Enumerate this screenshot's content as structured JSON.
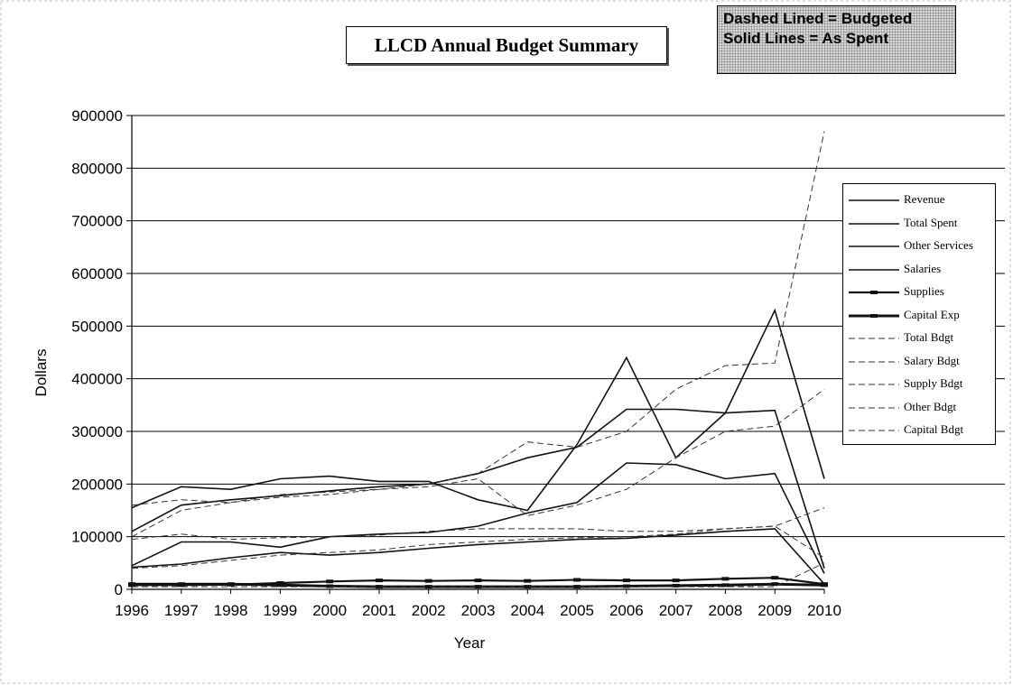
{
  "chart_data": {
    "type": "line",
    "title": "LLCD Annual Budget Summary",
    "note": [
      "Dashed Lined = Budgeted",
      "Solid Lines = As Spent"
    ],
    "xlabel": "Year",
    "ylabel": "Dollars",
    "x": [
      "1996",
      "1997",
      "1998",
      "1999",
      "2000",
      "2001",
      "2002",
      "2003",
      "2004",
      "2005",
      "2006",
      "2007",
      "2008",
      "2009",
      "2010"
    ],
    "ylim": [
      0,
      900000
    ],
    "yticks": [
      0,
      100000,
      200000,
      300000,
      400000,
      500000,
      600000,
      700000,
      800000,
      900000
    ],
    "grid": true,
    "legend_position": "right",
    "series": [
      {
        "name": "Revenue",
        "style": "solid",
        "values": [
          155000,
          195000,
          190000,
          210000,
          215000,
          205000,
          205000,
          170000,
          150000,
          275000,
          440000,
          250000,
          335000,
          530000,
          210000
        ]
      },
      {
        "name": "Total Spent",
        "style": "solid",
        "values": [
          110000,
          160000,
          170000,
          178000,
          187000,
          195000,
          200000,
          220000,
          250000,
          270000,
          342000,
          342000,
          335000,
          340000,
          40000
        ]
      },
      {
        "name": "Other Services",
        "style": "solid",
        "values": [
          45000,
          90000,
          90000,
          80000,
          100000,
          105000,
          108000,
          120000,
          145000,
          165000,
          240000,
          237000,
          210000,
          220000,
          30000
        ]
      },
      {
        "name": "Salaries",
        "style": "solid",
        "values": [
          42000,
          48000,
          60000,
          70000,
          65000,
          70000,
          78000,
          85000,
          90000,
          95000,
          97000,
          103000,
          110000,
          115000,
          10000
        ]
      },
      {
        "name": "Supplies",
        "style": "solid",
        "values": [
          8000,
          8000,
          9000,
          12000,
          15000,
          17000,
          16000,
          17000,
          16000,
          18000,
          17000,
          17000,
          20000,
          22000,
          10000
        ]
      },
      {
        "name": "Capital Exp",
        "style": "solid",
        "values": [
          10000,
          10000,
          10000,
          8000,
          6000,
          5000,
          5000,
          5000,
          5000,
          5000,
          6000,
          7000,
          8000,
          10000,
          8000
        ]
      },
      {
        "name": "Total Bdgt",
        "style": "dashed",
        "values": [
          160000,
          170000,
          165000,
          180000,
          185000,
          190000,
          200000,
          220000,
          280000,
          270000,
          300000,
          380000,
          425000,
          430000,
          870000
        ]
      },
      {
        "name": "Salary Bdgt",
        "style": "dashed",
        "values": [
          95000,
          105000,
          95000,
          98000,
          100000,
          103000,
          110000,
          115000,
          115000,
          115000,
          110000,
          110000,
          115000,
          120000,
          155000
        ]
      },
      {
        "name": "Supply Bdgt",
        "style": "dashed",
        "values": [
          40000,
          45000,
          55000,
          65000,
          70000,
          75000,
          85000,
          90000,
          95000,
          98000,
          100000,
          105000,
          115000,
          120000,
          60000
        ]
      },
      {
        "name": "Other Bdgt",
        "style": "dashed",
        "values": [
          100000,
          150000,
          165000,
          175000,
          180000,
          190000,
          195000,
          210000,
          140000,
          160000,
          190000,
          250000,
          300000,
          310000,
          380000
        ]
      },
      {
        "name": "Capital Bdgt",
        "style": "dashed",
        "values": [
          5000,
          5000,
          5000,
          5000,
          5000,
          5000,
          5000,
          5000,
          5000,
          5000,
          5000,
          5000,
          5000,
          5000,
          50000
        ]
      }
    ]
  }
}
